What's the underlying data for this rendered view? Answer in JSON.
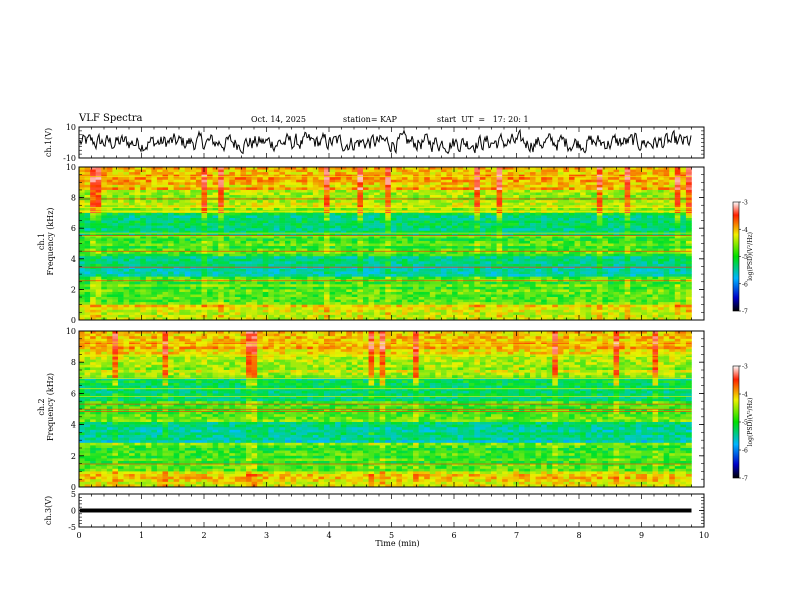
{
  "header": {
    "title": "VLF Spectra",
    "date": "Oct. 14, 2025",
    "station": "station= KAP",
    "start_ut": "start  UT  =   17: 20: 1"
  },
  "chart_data": [
    {
      "type": "line",
      "ylabel": "ch.1(V)",
      "ylim": [
        -10,
        10
      ],
      "yticks": [
        "10",
        "-10"
      ],
      "xlim": [
        0,
        10
      ],
      "description_of_series": "noise waveform"
    },
    {
      "type": "heatmap",
      "ylabel": "ch.1\nFrequency (kHz)",
      "ylabel_lines": [
        "ch.1",
        "Frequency (kHz)"
      ],
      "ylim": [
        0,
        10
      ],
      "yticks": [
        "0",
        "2",
        "4",
        "6",
        "8",
        "10"
      ],
      "xlim": [
        0,
        10
      ],
      "colorbar": {
        "label": "log(PSD)(V²/Hz)",
        "min": -7,
        "max": -3,
        "ticks": [
          "-3",
          "-4",
          "-5",
          "-6",
          "-7"
        ]
      }
    },
    {
      "type": "heatmap",
      "ylabel": "ch.2\nFrequency (kHz)",
      "ylabel_lines": [
        "ch.2",
        "Frequency (kHz)"
      ],
      "ylim": [
        0,
        10
      ],
      "yticks": [
        "0",
        "2",
        "4",
        "6",
        "8",
        "10"
      ],
      "xlim": [
        0,
        10
      ],
      "colorbar": {
        "label": "log(PSD)(V²/Hz)",
        "min": -7,
        "max": -3,
        "ticks": [
          "-3",
          "-4",
          "-5",
          "-6",
          "-7"
        ]
      }
    },
    {
      "type": "line",
      "ylabel": "ch.3(V)",
      "ylim": [
        -5,
        5
      ],
      "yticks": [
        "5",
        "0",
        "-5"
      ],
      "xlim": [
        0,
        10
      ],
      "xlabel": "Time (min)",
      "xticks": [
        "0",
        "1",
        "2",
        "3",
        "4",
        "5",
        "6",
        "7",
        "8",
        "9",
        "10"
      ],
      "data_end_x": 9.8,
      "band": [
        -0.6,
        0.6
      ]
    }
  ],
  "colors": {
    "frame": "#000000",
    "background": "#ffffff"
  }
}
